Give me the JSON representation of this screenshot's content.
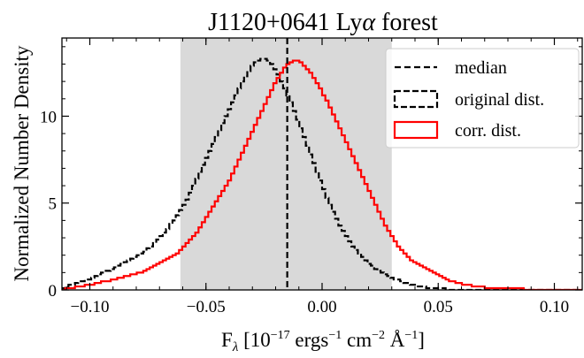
{
  "chart_data": {
    "type": "histogram",
    "title_prefix": "J1120+0641 Ly",
    "title_greek": "α",
    "title_suffix": " forest",
    "ylabel": "Normalized Number Density",
    "xlabel": {
      "main": "F",
      "sub": "λ",
      "p1": " [10",
      "e1": "−17",
      "p2": " ergs",
      "e2": "−1",
      "p3": " cm",
      "e3": "−2",
      "p4": " Å",
      "e4": "−1",
      "p5": "]"
    },
    "xlim": [
      -0.112,
      0.112
    ],
    "ylim": [
      0,
      14.5
    ],
    "xticks": [
      -0.1,
      -0.05,
      0.0,
      0.05,
      0.1
    ],
    "xtick_labels": [
      "−0.10",
      "−0.05",
      "0.00",
      "0.05",
      "0.10"
    ],
    "yticks": [
      0,
      5,
      10
    ],
    "ytick_labels": [
      "0",
      "5",
      "10"
    ],
    "shaded_region": [
      -0.061,
      0.03
    ],
    "median": -0.015,
    "legend": {
      "position": "top-right",
      "entries": [
        {
          "label": "median",
          "style": "dashed-line",
          "color": "#000000"
        },
        {
          "label": "original dist.",
          "style": "dashed-step",
          "color": "#000000"
        },
        {
          "label": "corr. dist.",
          "style": "solid-step",
          "color": "#ff0000"
        }
      ]
    },
    "series": [
      {
        "name": "original dist.",
        "color": "#000000",
        "dash": true,
        "bin_start": -0.112,
        "bin_width": 0.0014,
        "values": [
          0.1,
          0.2,
          0.3,
          0.3,
          0.4,
          0.5,
          0.5,
          0.6,
          0.6,
          0.7,
          0.8,
          0.9,
          1.0,
          1.1,
          1.1,
          1.2,
          1.3,
          1.4,
          1.5,
          1.6,
          1.7,
          1.8,
          1.9,
          2.0,
          2.1,
          2.2,
          2.4,
          2.5,
          2.7,
          2.9,
          3.1,
          3.3,
          3.5,
          3.8,
          4.0,
          4.3,
          4.6,
          4.9,
          5.2,
          5.6,
          6.0,
          6.4,
          6.8,
          7.2,
          7.6,
          8.0,
          8.4,
          8.8,
          9.2,
          9.6,
          10.0,
          10.4,
          10.8,
          11.2,
          11.6,
          12.0,
          12.3,
          12.6,
          12.9,
          13.1,
          13.2,
          13.3,
          13.3,
          13.2,
          13.0,
          12.7,
          12.4,
          12.0,
          11.6,
          11.2,
          10.8,
          10.3,
          9.8,
          9.3,
          8.8,
          8.3,
          7.8,
          7.3,
          6.8,
          6.3,
          5.8,
          5.3,
          4.9,
          4.5,
          4.1,
          3.7,
          3.4,
          3.1,
          2.8,
          2.5,
          2.3,
          2.1,
          1.9,
          1.7,
          1.5,
          1.4,
          1.2,
          1.1,
          1.0,
          0.9,
          0.8,
          0.7,
          0.6,
          0.6,
          0.5,
          0.4,
          0.4,
          0.3,
          0.3,
          0.2,
          0.2,
          0.2,
          0.1,
          0.1,
          0.1,
          0.1,
          0.1,
          0.1,
          0.0,
          0.0,
          0.0,
          0.0,
          0.0,
          0.0,
          0.0,
          0.0,
          0.0,
          0.0,
          0.0,
          0.0,
          0.0,
          0.0,
          0.0,
          0.0,
          0.0,
          0.0,
          0.0,
          0.0,
          0.0,
          0.0,
          0.0,
          0.0,
          0.0,
          0.0,
          0.0,
          0.0,
          0.0,
          0.0,
          0.0,
          0.0,
          0.0,
          0.0,
          0.0,
          0.0,
          0.0,
          0.0,
          0.0,
          0.0,
          0.0,
          0.0
        ]
      },
      {
        "name": "corr. dist.",
        "color": "#ff0000",
        "dash": false,
        "bin_start": -0.112,
        "bin_width": 0.0014,
        "values": [
          0.0,
          0.1,
          0.1,
          0.1,
          0.2,
          0.2,
          0.2,
          0.3,
          0.3,
          0.3,
          0.4,
          0.4,
          0.5,
          0.5,
          0.5,
          0.6,
          0.6,
          0.7,
          0.7,
          0.8,
          0.8,
          0.9,
          0.9,
          1.0,
          1.0,
          1.1,
          1.2,
          1.3,
          1.4,
          1.5,
          1.6,
          1.7,
          1.8,
          1.9,
          2.0,
          2.1,
          2.3,
          2.5,
          2.7,
          2.9,
          3.1,
          3.3,
          3.6,
          3.9,
          4.2,
          4.5,
          4.8,
          5.1,
          5.4,
          5.7,
          6.0,
          6.3,
          6.7,
          7.1,
          7.5,
          7.9,
          8.3,
          8.7,
          9.1,
          9.5,
          9.9,
          10.3,
          10.7,
          11.1,
          11.5,
          11.9,
          12.2,
          12.5,
          12.8,
          13.0,
          13.1,
          13.2,
          13.2,
          13.1,
          12.9,
          12.7,
          12.5,
          12.2,
          11.9,
          11.6,
          11.2,
          10.9,
          10.5,
          10.1,
          9.7,
          9.3,
          8.9,
          8.5,
          8.1,
          7.7,
          7.3,
          6.9,
          6.5,
          6.1,
          5.7,
          5.3,
          4.9,
          4.5,
          4.1,
          3.7,
          3.4,
          3.1,
          2.8,
          2.5,
          2.3,
          2.1,
          1.9,
          1.7,
          1.6,
          1.5,
          1.4,
          1.3,
          1.2,
          1.1,
          1.0,
          0.9,
          0.8,
          0.7,
          0.6,
          0.5,
          0.5,
          0.4,
          0.4,
          0.3,
          0.3,
          0.3,
          0.2,
          0.2,
          0.2,
          0.2,
          0.1,
          0.1,
          0.1,
          0.1,
          0.1,
          0.1,
          0.1,
          0.1,
          0.1,
          0.1,
          0.1,
          0.1,
          0.0,
          0.0,
          0.0,
          0.0,
          0.0,
          0.0,
          0.0,
          0.0,
          0.0,
          0.0,
          0.0,
          0.0,
          0.0,
          0.0,
          0.0,
          0.0,
          0.0,
          0.0,
          0.0,
          0.0,
          0.0
        ]
      }
    ]
  }
}
